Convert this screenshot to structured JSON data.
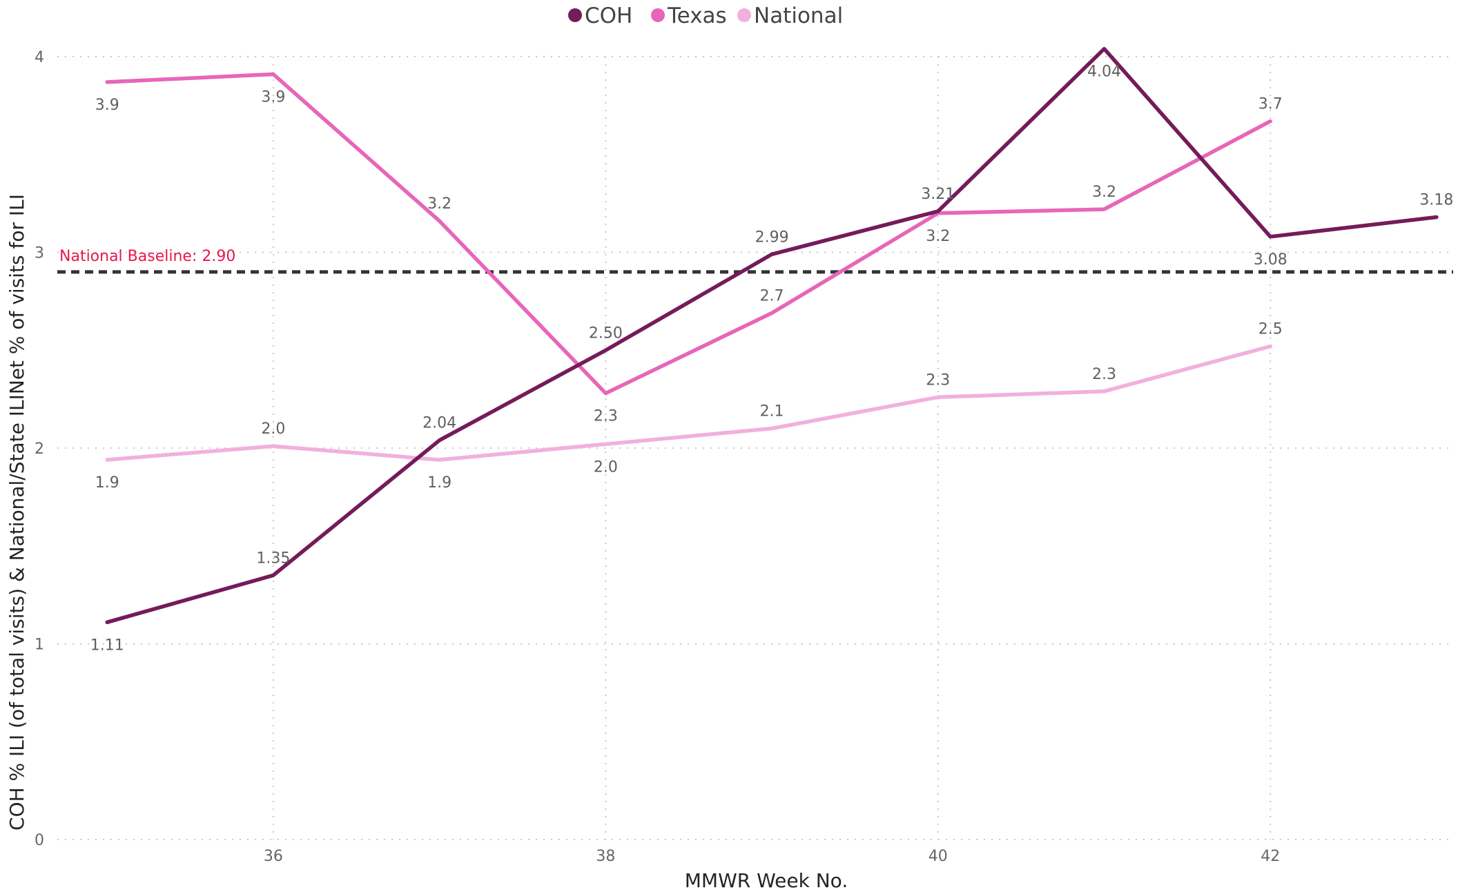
{
  "chart_data": {
    "type": "line",
    "xlabel": "MMWR Week No.",
    "ylabel": "COH % ILI (of total visits) & National/State ILINet % of visits for ILI",
    "x": [
      35,
      36,
      37,
      38,
      39,
      40,
      41,
      42,
      43
    ],
    "x_ticks": [
      "36",
      "38",
      "40",
      "42"
    ],
    "y_ticks": [
      "0",
      "1",
      "2",
      "3",
      "4"
    ],
    "xlim": [
      34.7,
      43.1
    ],
    "ylim": [
      0,
      4
    ],
    "grid": true,
    "legend_position": "top-center",
    "series": [
      {
        "name": "COH",
        "color": "#741b5a",
        "x": [
          35,
          36,
          37,
          38,
          39,
          40,
          41,
          42,
          43
        ],
        "values": [
          1.11,
          1.35,
          2.04,
          2.5,
          2.99,
          3.21,
          4.04,
          3.08,
          3.18
        ],
        "labels": [
          "1.11",
          "1.35",
          "2.04",
          "2.50",
          "2.99",
          "3.21",
          "4.04",
          "3.08",
          "3.18"
        ]
      },
      {
        "name": "Texas",
        "color": "#e766b9",
        "x": [
          35,
          36,
          37,
          38,
          39,
          40,
          41,
          42
        ],
        "values": [
          3.87,
          3.91,
          3.16,
          2.28,
          2.69,
          3.2,
          3.22,
          3.67
        ],
        "labels": [
          "3.9",
          "3.9",
          "3.2",
          "2.3",
          "2.7",
          "3.2",
          "3.2",
          "3.7"
        ]
      },
      {
        "name": "National",
        "color": "#f2b0dc",
        "x": [
          35,
          36,
          37,
          38,
          39,
          40,
          41,
          42
        ],
        "values": [
          1.94,
          2.01,
          1.94,
          2.02,
          2.1,
          2.26,
          2.29,
          2.52
        ],
        "labels": [
          "1.9",
          "2.0",
          "1.9",
          "2.0",
          "2.1",
          "2.3",
          "2.3",
          "2.5"
        ]
      }
    ],
    "reference_line": {
      "label": "National Baseline: 2.90",
      "value": 2.9,
      "color": "#333333",
      "label_color": "#e8174c"
    }
  }
}
